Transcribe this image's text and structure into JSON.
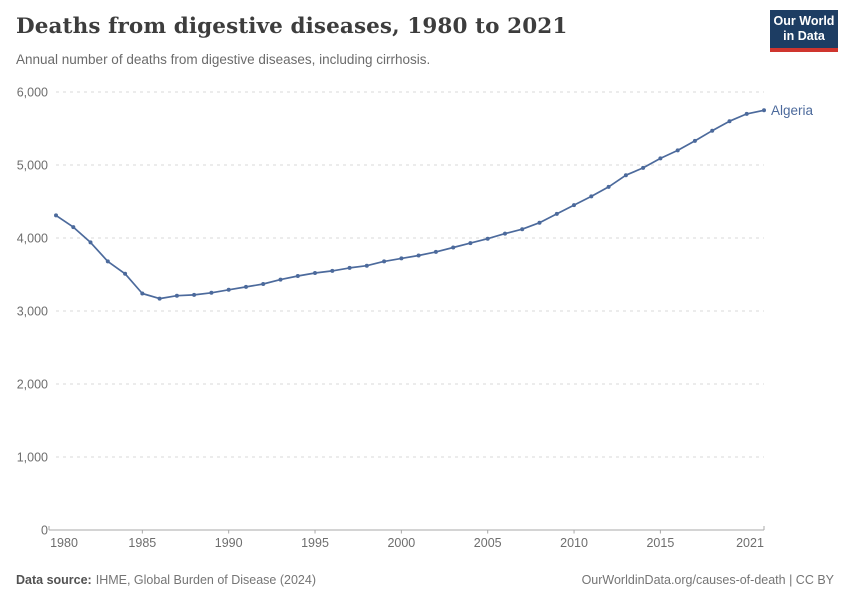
{
  "header": {
    "title": "Deaths from digestive diseases, 1980 to 2021",
    "subtitle": "Annual number of deaths from digestive diseases, including cirrhosis.",
    "logo": {
      "line1": "Our World",
      "line2": "in Data"
    }
  },
  "chart_data": {
    "type": "line",
    "title": "Deaths from digestive diseases, 1980 to 2021",
    "xlabel": "",
    "ylabel": "",
    "xlim": [
      1980,
      2021
    ],
    "ylim": [
      0,
      6000
    ],
    "grid": "horizontal-dashed",
    "legend_position": "end-of-line-label",
    "x_ticks": {
      "values": [
        1980,
        1985,
        1990,
        1995,
        2000,
        2005,
        2010,
        2015,
        2021
      ],
      "labels": [
        "1980",
        "1985",
        "1990",
        "1995",
        "2000",
        "2005",
        "2010",
        "2015",
        "2021"
      ]
    },
    "y_ticks": {
      "values": [
        0,
        1000,
        2000,
        3000,
        4000,
        5000,
        6000
      ],
      "labels": [
        "0",
        "1,000",
        "2,000",
        "3,000",
        "4,000",
        "5,000",
        "6,000"
      ]
    },
    "series": [
      {
        "name": "Algeria",
        "color": "#4c6a9c",
        "x": [
          1980,
          1981,
          1982,
          1983,
          1984,
          1985,
          1986,
          1987,
          1988,
          1989,
          1990,
          1991,
          1992,
          1993,
          1994,
          1995,
          1996,
          1997,
          1998,
          1999,
          2000,
          2001,
          2002,
          2003,
          2004,
          2005,
          2006,
          2007,
          2008,
          2009,
          2010,
          2011,
          2012,
          2013,
          2014,
          2015,
          2016,
          2017,
          2018,
          2019,
          2020,
          2021
        ],
        "values": [
          4310,
          4150,
          3940,
          3680,
          3510,
          3240,
          3170,
          3210,
          3220,
          3250,
          3290,
          3330,
          3370,
          3430,
          3480,
          3520,
          3550,
          3590,
          3620,
          3680,
          3720,
          3760,
          3810,
          3870,
          3930,
          3990,
          4060,
          4120,
          4210,
          4330,
          4450,
          4570,
          4700,
          4860,
          4960,
          5090,
          5200,
          5330,
          5470,
          5600,
          5700,
          5750
        ]
      }
    ],
    "colors": {
      "line": "#4c6a9c",
      "gridline": "#dadada",
      "axis": "#a8a8a8",
      "tick_label": "#6e6e6e"
    }
  },
  "footer": {
    "source_label": "Data source:",
    "source_value": "IHME, Global Burden of Disease (2024)",
    "credit": "OurWorldinData.org/causes-of-death | CC BY"
  }
}
